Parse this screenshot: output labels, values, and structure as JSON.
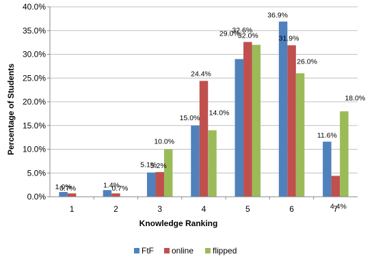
{
  "chart_data": {
    "type": "bar",
    "title": "",
    "xlabel": "Knowledge Ranking",
    "ylabel": "Percentage of Students",
    "categories": [
      "1",
      "2",
      "3",
      "4",
      "5",
      "6",
      "7"
    ],
    "ylim": [
      0,
      40
    ],
    "yticks": [
      "0.0%",
      "5.0%",
      "10.0%",
      "15.0%",
      "20.0%",
      "25.0%",
      "30.0%",
      "35.0%",
      "40.0%"
    ],
    "grid": true,
    "legend_position": "bottom",
    "series": [
      {
        "name": "FtF",
        "color": "#4F81BD",
        "values": [
          1.0,
          1.4,
          5.1,
          15.0,
          29.0,
          36.9,
          11.6
        ],
        "labels": [
          "1.0%",
          "1.4%",
          "5.1%",
          "15.0%",
          "29.0%",
          "36.9%",
          "11.6%"
        ]
      },
      {
        "name": "online",
        "color": "#C0504D",
        "values": [
          0.7,
          0.7,
          5.2,
          24.4,
          32.6,
          31.9,
          4.4
        ],
        "labels": [
          "0.7%",
          "0.7%",
          "5.2%",
          "24.4%",
          "32.6%",
          "31.9%",
          "4.4%"
        ]
      },
      {
        "name": "flipped",
        "color": "#9BBB59",
        "values": [
          0.0,
          0.0,
          10.0,
          14.0,
          32.0,
          26.0,
          18.0
        ],
        "labels": [
          "",
          "",
          "10.0%",
          "14.0%",
          "32.0%",
          "26.0%",
          "18.0%"
        ]
      }
    ]
  }
}
